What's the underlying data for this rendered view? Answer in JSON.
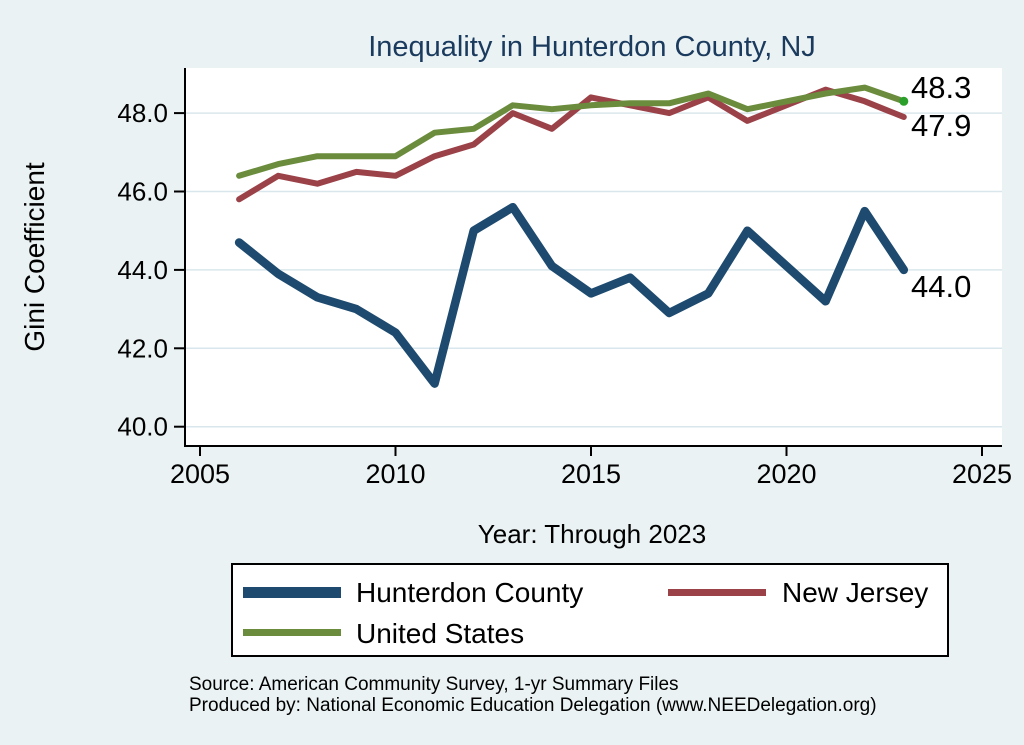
{
  "title": "Inequality in Hunterdon County, NJ",
  "chart_data": {
    "type": "line",
    "title": "Inequality in Hunterdon County, NJ",
    "xlabel": "Year: Through 2023",
    "ylabel": "Gini Coefficient",
    "x_ticks": [
      2005,
      2010,
      2015,
      2020,
      2025
    ],
    "x_tick_labels": [
      "2005",
      "2010",
      "2015",
      "2020",
      "2025"
    ],
    "y_ticks": [
      40,
      42,
      44,
      46,
      48
    ],
    "y_tick_labels": [
      "40.0",
      "42.0",
      "44.0",
      "46.0",
      "48.0"
    ],
    "xlim": [
      2005,
      2025
    ],
    "ylim": [
      39.5,
      49.0
    ],
    "grid": "horizontal",
    "legend_position": "bottom",
    "note": "2020 value missing for all series (line connects 2019 to 2021)",
    "x": [
      2006,
      2007,
      2008,
      2009,
      2010,
      2011,
      2012,
      2013,
      2014,
      2015,
      2016,
      2017,
      2018,
      2019,
      2020,
      2021,
      2022,
      2023
    ],
    "series": [
      {
        "name": "Hunterdon County",
        "color": "#1d4a6e",
        "line_width": 8.5,
        "values": [
          44.7,
          43.9,
          43.3,
          43.0,
          42.4,
          41.1,
          45.0,
          45.6,
          44.1,
          43.4,
          43.8,
          42.9,
          43.4,
          45.0,
          null,
          43.2,
          45.5,
          44.0
        ]
      },
      {
        "name": "New Jersey",
        "color": "#9b4148",
        "line_width": 6,
        "values": [
          45.8,
          46.4,
          46.2,
          46.5,
          46.4,
          46.9,
          47.2,
          48.0,
          47.6,
          48.4,
          48.2,
          48.0,
          48.4,
          47.8,
          null,
          48.6,
          48.3,
          47.9
        ]
      },
      {
        "name": "United States",
        "color": "#6a8c3c",
        "line_width": 6,
        "end_marker": true,
        "end_marker_color": "#2aa02a",
        "values": [
          46.4,
          46.7,
          46.9,
          46.9,
          46.9,
          47.5,
          47.6,
          48.2,
          48.1,
          48.2,
          48.25,
          48.25,
          48.5,
          48.1,
          null,
          48.5,
          48.65,
          48.3
        ]
      }
    ],
    "end_labels": {
      "united_states": "48.3",
      "new_jersey": "47.9",
      "hunterdon_county": "44.0"
    }
  },
  "legend": {
    "items": [
      {
        "label": "Hunterdon County",
        "color": "#1d4a6e"
      },
      {
        "label": "New Jersey",
        "color": "#9b4148"
      },
      {
        "label": "United States",
        "color": "#6a8c3c"
      }
    ]
  },
  "footer": {
    "line1": "Source: American Community Survey, 1-yr Summary Files",
    "line2": "Produced by: National Economic Education Delegation (www.NEEDelegation.org)"
  },
  "colors": {
    "background": "#eaf2f3",
    "plot_background": "#ffffff",
    "gridline": "#d9e7ec",
    "axis": "#000000",
    "title": "#1a3a5e",
    "text": "#000000"
  }
}
